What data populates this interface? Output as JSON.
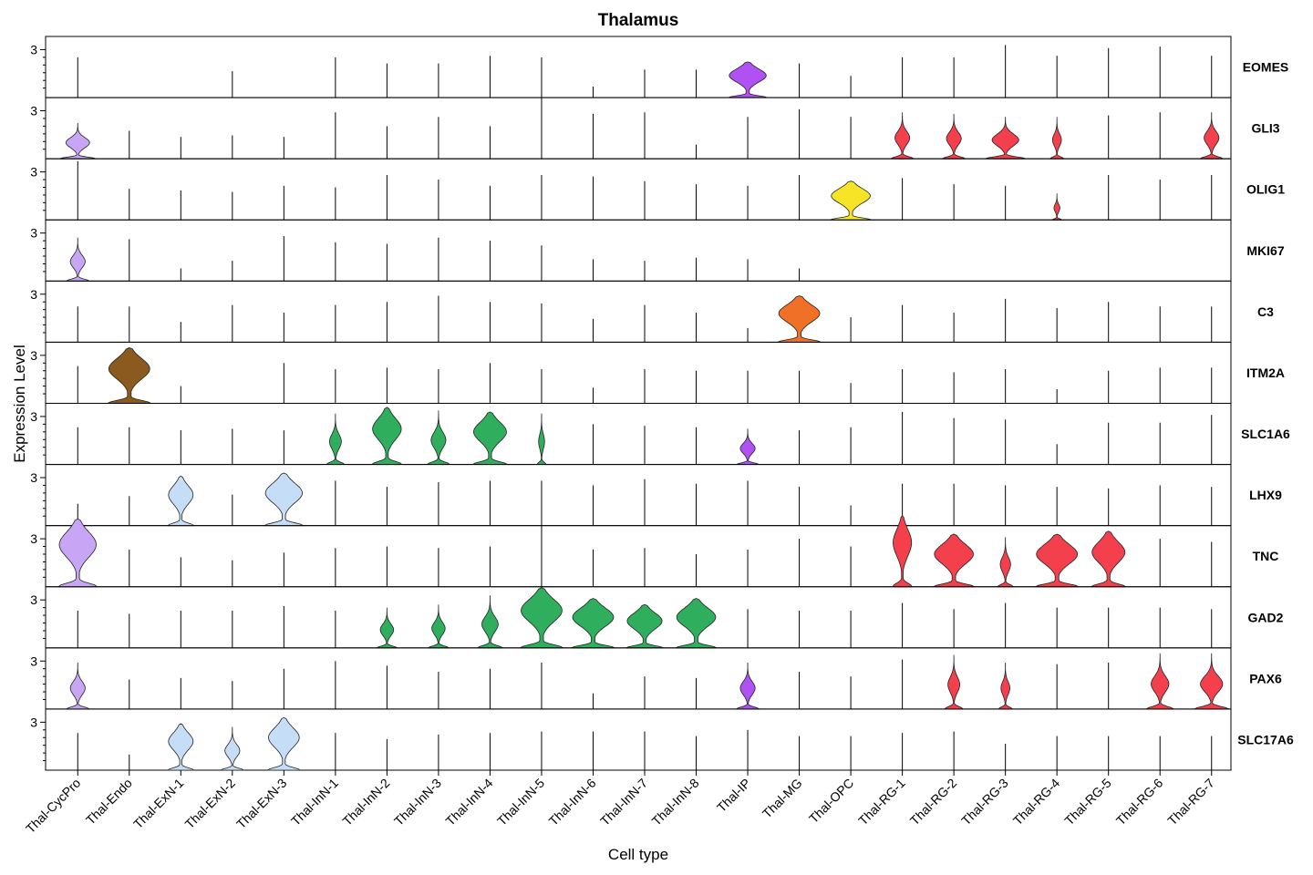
{
  "chart_data": {
    "type": "violin",
    "title": "Thalamus",
    "xlabel": "Cell type",
    "ylabel": "Expression Level",
    "ytick_label": "3",
    "ylim": [
      0,
      3.5
    ],
    "cell_types": [
      "Thal-CycPro",
      "Thal-Endo",
      "Thal-ExN-1",
      "Thal-ExN-2",
      "Thal-ExN-3",
      "Thal-InN-1",
      "Thal-InN-2",
      "Thal-InN-3",
      "Thal-InN-4",
      "Thal-InN-5",
      "Thal-InN-6",
      "Thal-InN-7",
      "Thal-InN-8",
      "Thal-IP",
      "Thal-MG",
      "Thal-OPC",
      "Thal-RG-1",
      "Thal-RG-2",
      "Thal-RG-3",
      "Thal-RG-4",
      "Thal-RG-5",
      "Thal-RG-6",
      "Thal-RG-7"
    ],
    "colors": {
      "Thal-CycPro": "#C9A6F5",
      "Thal-Endo": "#8B5A1E",
      "Thal-ExN-1": "#C6DDF8",
      "Thal-ExN-2": "#C6DDF8",
      "Thal-ExN-3": "#C6DDF8",
      "Thal-InN-1": "#2FAE5E",
      "Thal-InN-2": "#2FAE5E",
      "Thal-InN-3": "#2FAE5E",
      "Thal-InN-4": "#2FAE5E",
      "Thal-InN-5": "#2FAE5E",
      "Thal-InN-6": "#2FAE5E",
      "Thal-InN-7": "#2FAE5E",
      "Thal-InN-8": "#2FAE5E",
      "Thal-IP": "#B051F3",
      "Thal-MG": "#F07028",
      "Thal-OPC": "#F7E426",
      "Thal-RG-1": "#F4404D",
      "Thal-RG-2": "#F4404D",
      "Thal-RG-3": "#F4404D",
      "Thal-RG-4": "#F4404D",
      "Thal-RG-5": "#F4404D",
      "Thal-RG-6": "#F4404D",
      "Thal-RG-7": "#F4404D"
    },
    "genes": [
      {
        "name": "EOMES",
        "max": [
          2.5,
          0,
          0,
          1.6,
          0,
          2.5,
          2.1,
          2.1,
          2.6,
          2.5,
          0.6,
          1.7,
          1.7,
          2.2,
          2.1,
          1.3,
          2.5,
          2.5,
          3.3,
          2.6,
          3.1,
          3.2,
          2.6
        ],
        "width": [
          0,
          0,
          0,
          0,
          0,
          0,
          0,
          0,
          0,
          0,
          0,
          0,
          0,
          0.9,
          0,
          0,
          0,
          0,
          0,
          0,
          0,
          0,
          0
        ],
        "shape": [
          0,
          0,
          0,
          0,
          0,
          0,
          0,
          0,
          0,
          0,
          0,
          0,
          0,
          1,
          0,
          0,
          0,
          0,
          0,
          0,
          0,
          0,
          0
        ]
      },
      {
        "name": "GLI3",
        "max": [
          2.2,
          1.7,
          1.3,
          1.4,
          1.3,
          2.9,
          2.0,
          2.6,
          2.0,
          3.9,
          2.8,
          2.9,
          0.8,
          2.6,
          3.1,
          2.6,
          2.9,
          2.8,
          2.6,
          2.6,
          2.7,
          2.9,
          2.9
        ],
        "width": [
          0.8,
          0,
          0,
          0,
          0,
          0,
          0,
          0,
          0,
          0,
          0,
          0,
          0,
          0,
          0,
          0,
          0.5,
          0.5,
          0.9,
          0.3,
          0,
          0,
          0.5
        ],
        "shape": [
          2,
          0,
          0,
          0,
          0,
          0,
          0,
          0,
          0,
          0,
          0,
          0,
          0,
          0,
          0,
          0,
          2,
          2,
          2,
          2,
          0,
          0,
          2
        ]
      },
      {
        "name": "OLIG1",
        "max": [
          3.7,
          1.9,
          1.8,
          1.7,
          2.1,
          2.0,
          2.8,
          2.5,
          2.1,
          2.8,
          2.7,
          2.4,
          2.2,
          2.1,
          2.8,
          2.4,
          2.6,
          2.2,
          2.1,
          1.6,
          2.8,
          2.5,
          2.8
        ],
        "width": [
          0,
          0,
          0,
          0,
          0,
          0,
          0,
          0,
          0,
          0,
          0,
          0,
          0,
          0,
          0,
          0.95,
          0,
          0,
          0,
          0.2,
          0,
          0,
          0
        ],
        "shape": [
          0,
          0,
          0,
          0,
          0,
          0,
          0,
          0,
          0,
          0,
          0,
          0,
          0,
          0,
          0,
          1,
          0,
          0,
          0,
          2,
          0,
          0,
          0
        ]
      },
      {
        "name": "MKI67",
        "max": [
          2.7,
          2.6,
          0.7,
          1.2,
          2.8,
          2.4,
          2.3,
          2.7,
          2.5,
          2.2,
          1.3,
          1.2,
          1.4,
          1.3,
          0.7,
          0,
          0,
          0,
          0,
          0,
          0,
          0,
          0
        ],
        "width": [
          0.5,
          0,
          0,
          0,
          0,
          0,
          0,
          0,
          0,
          0,
          0,
          0,
          0,
          0,
          0,
          0,
          0,
          0,
          0,
          0,
          0,
          0,
          0
        ],
        "shape": [
          2,
          0,
          0,
          0,
          0,
          0,
          0,
          0,
          0,
          0,
          0,
          0,
          0,
          0,
          0,
          0,
          0,
          0,
          0,
          0,
          0,
          0,
          0
        ]
      },
      {
        "name": "C3",
        "max": [
          2.2,
          2.2,
          1.2,
          2.3,
          1.8,
          2.3,
          2.5,
          2.9,
          2.5,
          2.4,
          1.4,
          2.3,
          1.8,
          0.8,
          2.9,
          1.5,
          2.3,
          1.8,
          2.7,
          2.1,
          2.5,
          2.2,
          2.2
        ],
        "width": [
          0,
          0,
          0,
          0,
          0,
          0,
          0,
          0,
          0,
          0,
          0,
          0,
          0,
          0,
          1,
          0,
          0,
          0,
          0,
          0,
          0,
          0,
          0
        ],
        "shape": [
          0,
          0,
          0,
          0,
          0,
          0,
          0,
          0,
          0,
          0,
          0,
          0,
          0,
          0,
          1,
          0,
          0,
          0,
          0,
          0,
          0,
          0,
          0
        ]
      },
      {
        "name": "ITM2A",
        "max": [
          2.3,
          3.5,
          1.0,
          0,
          2.5,
          2.1,
          2.2,
          2.1,
          2.5,
          2.1,
          0.9,
          2.1,
          2.0,
          2.0,
          2.0,
          1.2,
          2.1,
          1.9,
          2.1,
          0.8,
          2.0,
          2.2,
          2.2
        ],
        "width": [
          0,
          1,
          0,
          0,
          0,
          0,
          0,
          0,
          0,
          0,
          0,
          0,
          0,
          0,
          0,
          0,
          0,
          0,
          0,
          0,
          0,
          0,
          0
        ],
        "shape": [
          0,
          1,
          0,
          0,
          0,
          0,
          0,
          0,
          0,
          0,
          0,
          0,
          0,
          0,
          0,
          0,
          0,
          0,
          0,
          0,
          0,
          0,
          0
        ]
      },
      {
        "name": "SLC1A6",
        "max": [
          2.3,
          2.3,
          2.1,
          2.2,
          2.1,
          3.2,
          3.6,
          3.4,
          3.3,
          3.2,
          2.5,
          2.4,
          2.3,
          2.2,
          2.1,
          2.3,
          3.3,
          2.9,
          2.8,
          1.2,
          2.6,
          2.6,
          3.1
        ],
        "width": [
          0,
          0,
          0,
          0,
          0,
          0.4,
          0.7,
          0.5,
          0.8,
          0.2,
          0,
          0,
          0,
          0.5,
          0,
          0,
          0,
          0,
          0,
          0,
          0,
          0,
          0
        ],
        "shape": [
          0,
          0,
          0,
          0,
          0,
          2,
          1,
          2,
          1,
          2,
          0,
          0,
          0,
          2,
          0,
          0,
          0,
          0,
          0,
          0,
          0,
          0,
          0
        ]
      },
      {
        "name": "LHX9",
        "max": [
          1.3,
          1.8,
          3.1,
          1.9,
          3.3,
          2.8,
          2.4,
          2.7,
          2.8,
          2.8,
          2.5,
          2.9,
          2.6,
          2.8,
          2.4,
          1.2,
          2.6,
          2.6,
          2.5,
          2.4,
          2.3,
          2.5,
          2.4
        ],
        "width": [
          0,
          0,
          0.6,
          0,
          0.9,
          0,
          0,
          0,
          0,
          0,
          0,
          0,
          0,
          0,
          0,
          0,
          0,
          0,
          0,
          0,
          0,
          0,
          0
        ],
        "shape": [
          0,
          0,
          1,
          0,
          1,
          0,
          0,
          0,
          0,
          0,
          0,
          0,
          0,
          0,
          0,
          0,
          0,
          0,
          0,
          0,
          0,
          0,
          0
        ]
      },
      {
        "name": "TNC",
        "max": [
          4.3,
          2.3,
          1.8,
          1.6,
          2.1,
          2.4,
          2.5,
          2.4,
          2.5,
          3.9,
          2.3,
          2.4,
          2.0,
          2.3,
          3.0,
          2.5,
          4.5,
          3.3,
          3.1,
          3.3,
          3.5,
          3.0,
          2.8
        ],
        "width": [
          0.9,
          0,
          0,
          0,
          0,
          0,
          0,
          0,
          0,
          0,
          0,
          0,
          0,
          0,
          0,
          0,
          0.45,
          0.95,
          0.35,
          1,
          0.8,
          0,
          0
        ],
        "shape": [
          1,
          0,
          0,
          0,
          0,
          0,
          0,
          0,
          0,
          0,
          0,
          0,
          0,
          0,
          0,
          0,
          1,
          1,
          2,
          1,
          1,
          0,
          0
        ]
      },
      {
        "name": "GAD2",
        "max": [
          2.3,
          2.1,
          2.3,
          2.3,
          2.6,
          2.3,
          2.5,
          2.7,
          3.3,
          3.8,
          3.1,
          2.7,
          3.1,
          2.4,
          2.3,
          2.3,
          2.8,
          2.4,
          2.8,
          2.5,
          2.5,
          2.5,
          2.4
        ],
        "width": [
          0,
          0,
          0,
          0,
          0,
          0,
          0.45,
          0.45,
          0.55,
          1,
          1,
          0.85,
          0.95,
          0,
          0,
          0,
          0,
          0,
          0,
          0,
          0,
          0,
          0
        ],
        "shape": [
          0,
          0,
          0,
          0,
          0,
          0,
          2,
          2,
          2,
          1,
          1,
          1,
          1,
          0,
          0,
          0,
          0,
          0,
          0,
          0,
          0,
          0,
          0
        ]
      },
      {
        "name": "PAX6",
        "max": [
          2.9,
          1.8,
          1.9,
          1.7,
          2.5,
          3.0,
          2.7,
          2.3,
          2.5,
          2.9,
          0.9,
          2.0,
          1.9,
          2.9,
          2.3,
          2.0,
          3.1,
          3.4,
          2.9,
          2.8,
          2.9,
          3.5,
          3.5
        ],
        "width": [
          0.5,
          0,
          0,
          0,
          0,
          0,
          0,
          0,
          0,
          0,
          0,
          0,
          0,
          0.5,
          0,
          0,
          0,
          0.4,
          0.3,
          0,
          0,
          0.6,
          0.75
        ],
        "shape": [
          2,
          0,
          0,
          0,
          0,
          0,
          0,
          0,
          0,
          0,
          0,
          0,
          0,
          2,
          0,
          0,
          0,
          2,
          2,
          0,
          0,
          2,
          2
        ]
      },
      {
        "name": "SLC17A6",
        "max": [
          2.3,
          0.9,
          2.9,
          2.7,
          3.3,
          2.3,
          1.9,
          2.2,
          2.3,
          2.4,
          2.4,
          2.4,
          2.1,
          2.5,
          2.1,
          2.1,
          2.3,
          2.4,
          1.6,
          2.1,
          2.1,
          2.1,
          2.1
        ],
        "width": [
          0,
          0,
          0.6,
          0.5,
          0.75,
          0,
          0,
          0,
          0,
          0,
          0,
          0,
          0,
          0,
          0,
          0,
          0,
          0,
          0,
          0,
          0,
          0,
          0
        ],
        "shape": [
          0,
          0,
          1,
          2,
          1,
          0,
          0,
          0,
          0,
          0,
          0,
          0,
          0,
          0,
          0,
          0,
          0,
          0,
          0,
          0,
          0,
          0,
          0
        ]
      }
    ]
  }
}
